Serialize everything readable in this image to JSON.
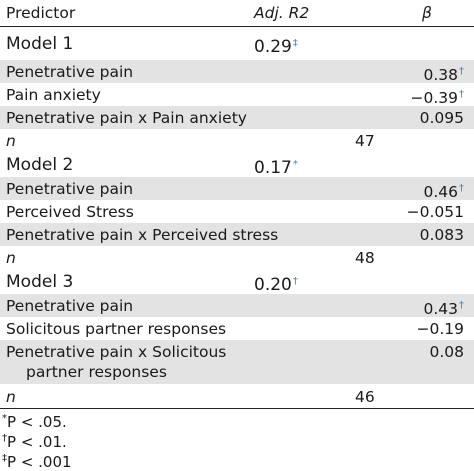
{
  "header": {
    "predictor": "Predictor",
    "adj_r2": "Adj. R2",
    "beta": "β"
  },
  "rows": [
    {
      "kind": "model",
      "label": "Model 1",
      "adj": "0.29",
      "adj_sup": "‡"
    },
    {
      "kind": "pred",
      "label": "Penetrative pain",
      "beta": "0.38",
      "beta_sup": "†"
    },
    {
      "kind": "pred",
      "label": "Pain anxiety",
      "beta": "−0.39",
      "beta_sup": "†"
    },
    {
      "kind": "pred",
      "label": "Penetrative pain x Pain anxiety",
      "beta": "0.095"
    },
    {
      "kind": "n",
      "label": "n",
      "n": "47"
    },
    {
      "kind": "model",
      "label": "Model 2",
      "adj": "0.17",
      "adj_sup": "*"
    },
    {
      "kind": "pred",
      "label": "Penetrative pain",
      "beta": "0.46",
      "beta_sup": "†"
    },
    {
      "kind": "pred",
      "label": "Perceived Stress",
      "beta": "−0.051"
    },
    {
      "kind": "pred",
      "label": "Penetrative pain x Perceived stress",
      "beta": "0.083"
    },
    {
      "kind": "n",
      "label": "n",
      "n": "48"
    },
    {
      "kind": "model",
      "label": "Model 3",
      "adj": "0.20",
      "adj_sup": "†"
    },
    {
      "kind": "pred",
      "label": "Penetrative pain",
      "beta": "0.43",
      "beta_sup": "†"
    },
    {
      "kind": "pred",
      "label": "Solicitous partner responses",
      "beta": "−0.19"
    },
    {
      "kind": "pred2",
      "label": "Penetrative pain x Solicitous",
      "label2": "partner responses",
      "beta": "0.08"
    },
    {
      "kind": "n",
      "label": "n",
      "n": "46"
    }
  ],
  "footnotes": [
    {
      "mark": "*",
      "text": "P < .05."
    },
    {
      "mark": "†",
      "text": "P < .01."
    },
    {
      "mark": "‡",
      "text": "P < .001"
    }
  ]
}
